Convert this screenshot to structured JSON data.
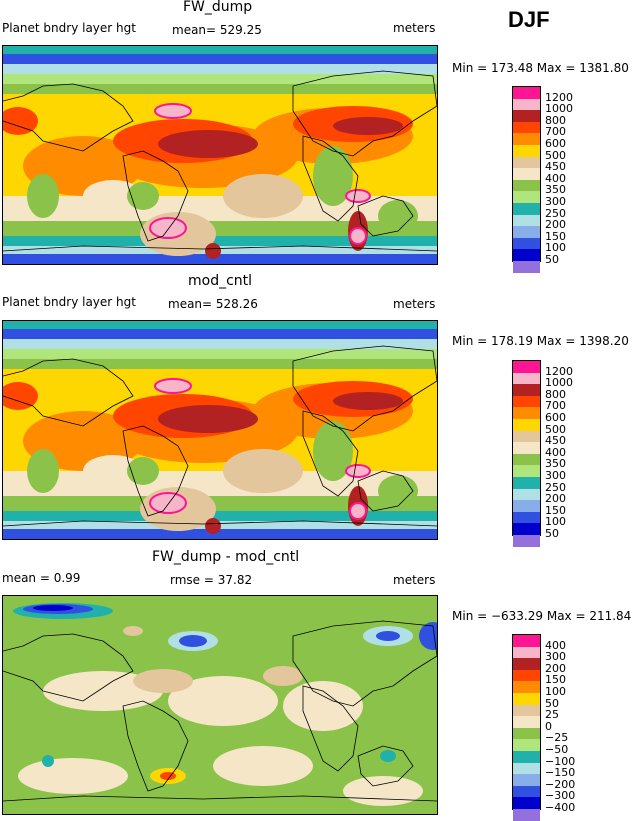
{
  "season_label": "DJF",
  "panels": [
    {
      "title": "FW_dump",
      "variable": "Planet bndry layer hgt",
      "mean_text": "mean= 529.25",
      "units": "meters",
      "minmax_text": "Min = 173.48  Max = 1381.80",
      "levels": [
        "1200",
        "1000",
        "800",
        "700",
        "600",
        "500",
        "450",
        "400",
        "350",
        "300",
        "250",
        "200",
        "150",
        "100",
        "50"
      ]
    },
    {
      "title": "mod_cntl",
      "variable": "Planet bndry layer hgt",
      "mean_text": "mean= 528.26",
      "units": "meters",
      "minmax_text": "Min = 178.19  Max = 1398.20",
      "levels": [
        "1200",
        "1000",
        "800",
        "700",
        "600",
        "500",
        "450",
        "400",
        "350",
        "300",
        "250",
        "200",
        "150",
        "100",
        "50"
      ]
    },
    {
      "title": "FW_dump - mod_cntl",
      "mean_text": "mean =    0.99",
      "rmse_text": "rmse =  37.82",
      "units": "meters",
      "minmax_text": "Min = −633.29  Max = 211.84",
      "levels": [
        "400",
        "300",
        "200",
        "150",
        "100",
        "50",
        "25",
        "0",
        "−25",
        "−50",
        "−100",
        "−150",
        "−200",
        "−300",
        "−400"
      ]
    }
  ],
  "colors": {
    "abs_scale": [
      "#ff1493",
      "#f6b5c9",
      "#b22222",
      "#ff4500",
      "#ff8c00",
      "#ffd700",
      "#e3c69c",
      "#f5e6c8",
      "#8bc34a",
      "#b0e57c",
      "#20b2aa",
      "#b0e0e6",
      "#87aee8",
      "#3050e0",
      "#0000cd",
      "#9370db"
    ],
    "diff_scale": [
      "#ff1493",
      "#f6b5c9",
      "#b22222",
      "#ff4500",
      "#ff8c00",
      "#ffd700",
      "#e3c69c",
      "#f5e6c8",
      "#8bc34a",
      "#b0e57c",
      "#20b2aa",
      "#b0e0e6",
      "#87aee8",
      "#3050e0",
      "#0000cd",
      "#9370db"
    ]
  },
  "chart_data": [
    {
      "type": "heatmap",
      "title": "FW_dump",
      "subtitle": "Planet bndry layer hgt",
      "units": "meters",
      "mean": 529.25,
      "min": 173.48,
      "max": 1381.8,
      "contour_levels": [
        50,
        100,
        150,
        200,
        250,
        300,
        350,
        400,
        450,
        500,
        600,
        700,
        800,
        1000,
        1200
      ]
    },
    {
      "type": "heatmap",
      "title": "mod_cntl",
      "subtitle": "Planet bndry layer hgt",
      "units": "meters",
      "mean": 528.26,
      "min": 178.19,
      "max": 1398.2,
      "contour_levels": [
        50,
        100,
        150,
        200,
        250,
        300,
        350,
        400,
        450,
        500,
        600,
        700,
        800,
        1000,
        1200
      ]
    },
    {
      "type": "heatmap",
      "title": "FW_dump - mod_cntl",
      "units": "meters",
      "mean": 0.99,
      "rmse": 37.82,
      "min": -633.29,
      "max": 211.84,
      "contour_levels": [
        -400,
        -300,
        -200,
        -150,
        -100,
        -50,
        -25,
        0,
        25,
        50,
        100,
        150,
        200,
        300,
        400
      ]
    }
  ]
}
